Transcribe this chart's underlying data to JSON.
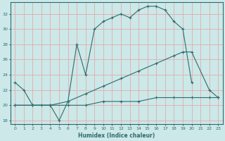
{
  "xlabel": "Humidex (Indice chaleur)",
  "ylabel": "",
  "bg_color": "#cce8e8",
  "line_color": "#2e6b6b",
  "grid_color": "#e8a0a0",
  "xlim": [
    -0.5,
    23.5
  ],
  "ylim": [
    17.5,
    33.5
  ],
  "yticks": [
    18,
    20,
    22,
    24,
    26,
    28,
    30,
    32
  ],
  "xticks": [
    0,
    1,
    2,
    3,
    4,
    5,
    6,
    7,
    8,
    9,
    10,
    11,
    12,
    13,
    14,
    15,
    16,
    17,
    18,
    19,
    20,
    21,
    22,
    23
  ],
  "line1_x": [
    0,
    1,
    2,
    3,
    4,
    5,
    6,
    7,
    8,
    9,
    10,
    11,
    12,
    13,
    14,
    15,
    16,
    17,
    18,
    19,
    20
  ],
  "line1_y": [
    23,
    22,
    20,
    20,
    20,
    18,
    20.5,
    28,
    24,
    30,
    31,
    31.5,
    32,
    31.5,
    32.5,
    33,
    33,
    32.5,
    31,
    30,
    23
  ],
  "line2_x": [
    0,
    2,
    4,
    6,
    8,
    10,
    12,
    14,
    16,
    18,
    19,
    20,
    22,
    23
  ],
  "line2_y": [
    20,
    20,
    20,
    20.5,
    21.5,
    22.5,
    23.5,
    24.5,
    25.5,
    26.5,
    27,
    27,
    22,
    21
  ],
  "line3_x": [
    0,
    2,
    4,
    6,
    8,
    10,
    12,
    14,
    16,
    18,
    20,
    22,
    23
  ],
  "line3_y": [
    20,
    20,
    20,
    20,
    20,
    20.5,
    20.5,
    20.5,
    21,
    21,
    21,
    21,
    21
  ]
}
